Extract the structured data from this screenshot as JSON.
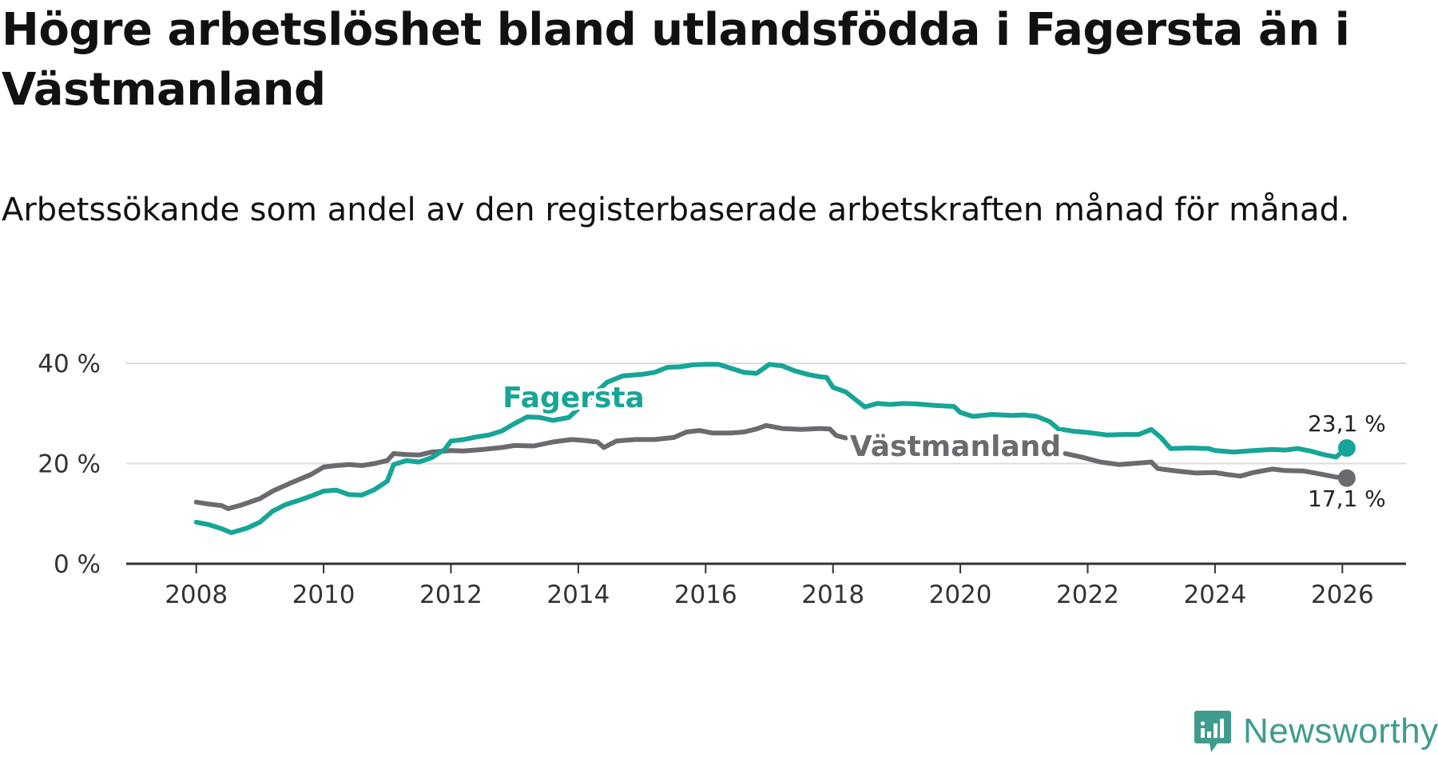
{
  "title": "Högre arbetslöshet bland utlandsfödda i Fagersta än i Västmanland",
  "subtitle": "Arbetssökande som andel av den registerbaserade arbetskraften månad för månad.",
  "brand": {
    "name": "Newsworthy",
    "icon": "newsworthy-logo-icon"
  },
  "colors": {
    "fagersta": "#16a596",
    "vastmanland": "#6b6a6f",
    "grid": "#dddddd",
    "axis": "#333333"
  },
  "chart_data": {
    "type": "line",
    "x_ticks": [
      "2008",
      "2010",
      "2012",
      "2014",
      "2016",
      "2018",
      "2020",
      "2022",
      "2024",
      "2026"
    ],
    "y_ticks": [
      "0 %",
      "20 %",
      "40 %"
    ],
    "ylim": [
      0,
      40
    ],
    "xlim": [
      2006.9,
      2027.0
    ],
    "grid": true,
    "series": [
      {
        "name": "Fagersta",
        "key": "fagersta",
        "end_label": "23,1 %",
        "points": [
          [
            2008.0,
            8.3
          ],
          [
            2008.2,
            7.8
          ],
          [
            2008.4,
            7.0
          ],
          [
            2008.55,
            6.2
          ],
          [
            2008.8,
            7.1
          ],
          [
            2009.0,
            8.3
          ],
          [
            2009.2,
            10.5
          ],
          [
            2009.4,
            11.8
          ],
          [
            2009.6,
            12.6
          ],
          [
            2009.8,
            13.5
          ],
          [
            2010.0,
            14.5
          ],
          [
            2010.2,
            14.7
          ],
          [
            2010.4,
            13.8
          ],
          [
            2010.6,
            13.7
          ],
          [
            2010.8,
            14.8
          ],
          [
            2011.0,
            16.5
          ],
          [
            2011.1,
            19.8
          ],
          [
            2011.3,
            20.6
          ],
          [
            2011.5,
            20.3
          ],
          [
            2011.7,
            21.2
          ],
          [
            2011.9,
            22.8
          ],
          [
            2012.0,
            24.5
          ],
          [
            2012.2,
            24.8
          ],
          [
            2012.4,
            25.3
          ],
          [
            2012.6,
            25.7
          ],
          [
            2012.8,
            26.5
          ],
          [
            2013.0,
            28.0
          ],
          [
            2013.2,
            29.3
          ],
          [
            2013.4,
            29.2
          ],
          [
            2013.6,
            28.6
          ],
          [
            2013.85,
            29.2
          ],
          [
            2014.45,
            36.2
          ],
          [
            2014.7,
            37.5
          ],
          [
            2015.0,
            37.8
          ],
          [
            2015.2,
            38.2
          ],
          [
            2015.4,
            39.2
          ],
          [
            2015.6,
            39.3
          ],
          [
            2015.8,
            39.7
          ],
          [
            2016.0,
            39.8
          ],
          [
            2016.2,
            39.8
          ],
          [
            2016.4,
            39.0
          ],
          [
            2016.6,
            38.2
          ],
          [
            2016.8,
            38.0
          ],
          [
            2017.0,
            39.8
          ],
          [
            2017.2,
            39.5
          ],
          [
            2017.4,
            38.5
          ],
          [
            2017.6,
            37.8
          ],
          [
            2017.8,
            37.3
          ],
          [
            2017.9,
            37.2
          ],
          [
            2018.0,
            35.2
          ],
          [
            2018.2,
            34.3
          ],
          [
            2018.35,
            32.8
          ],
          [
            2018.5,
            31.3
          ],
          [
            2018.7,
            32.0
          ],
          [
            2018.9,
            31.8
          ],
          [
            2019.1,
            32.0
          ],
          [
            2019.3,
            31.9
          ],
          [
            2019.6,
            31.6
          ],
          [
            2019.9,
            31.4
          ],
          [
            2020.0,
            30.2
          ],
          [
            2020.2,
            29.4
          ],
          [
            2020.5,
            29.8
          ],
          [
            2020.8,
            29.6
          ],
          [
            2021.0,
            29.7
          ],
          [
            2021.2,
            29.4
          ],
          [
            2021.4,
            28.4
          ],
          [
            2021.55,
            26.8
          ]
        ],
        "points_b": [
          [
            2021.6,
            26.8
          ],
          [
            2021.8,
            26.4
          ],
          [
            2022.0,
            26.2
          ],
          [
            2022.3,
            25.7
          ],
          [
            2022.6,
            25.8
          ],
          [
            2022.8,
            25.8
          ],
          [
            2023.0,
            26.8
          ],
          [
            2023.15,
            25.2
          ],
          [
            2023.3,
            23.0
          ],
          [
            2023.6,
            23.1
          ],
          [
            2023.9,
            23.0
          ],
          [
            2024.0,
            22.6
          ],
          [
            2024.3,
            22.3
          ],
          [
            2024.6,
            22.6
          ],
          [
            2024.9,
            22.8
          ],
          [
            2025.1,
            22.7
          ],
          [
            2025.3,
            23.0
          ],
          [
            2025.5,
            22.5
          ],
          [
            2025.7,
            21.8
          ],
          [
            2025.9,
            21.3
          ],
          [
            2026.07,
            23.1
          ]
        ]
      },
      {
        "name": "Västmanland",
        "key": "vastmanland",
        "end_label": "17,1 %",
        "points": [
          [
            2008.0,
            12.3
          ],
          [
            2008.2,
            11.9
          ],
          [
            2008.4,
            11.6
          ],
          [
            2008.5,
            11.0
          ],
          [
            2008.7,
            11.7
          ],
          [
            2009.0,
            13.0
          ],
          [
            2009.2,
            14.5
          ],
          [
            2009.5,
            16.2
          ],
          [
            2009.8,
            17.8
          ],
          [
            2010.0,
            19.3
          ],
          [
            2010.2,
            19.6
          ],
          [
            2010.4,
            19.8
          ],
          [
            2010.6,
            19.6
          ],
          [
            2010.8,
            20.0
          ],
          [
            2011.0,
            20.6
          ],
          [
            2011.1,
            22.0
          ],
          [
            2011.3,
            21.8
          ],
          [
            2011.5,
            21.7
          ],
          [
            2011.7,
            22.3
          ],
          [
            2012.0,
            22.6
          ],
          [
            2012.2,
            22.5
          ],
          [
            2012.5,
            22.8
          ],
          [
            2012.8,
            23.2
          ],
          [
            2013.0,
            23.6
          ],
          [
            2013.3,
            23.5
          ],
          [
            2013.6,
            24.3
          ],
          [
            2013.9,
            24.8
          ],
          [
            2014.1,
            24.6
          ],
          [
            2014.3,
            24.3
          ],
          [
            2014.4,
            23.2
          ],
          [
            2014.6,
            24.5
          ],
          [
            2014.9,
            24.8
          ],
          [
            2015.2,
            24.8
          ],
          [
            2015.5,
            25.2
          ],
          [
            2015.7,
            26.3
          ],
          [
            2015.9,
            26.6
          ],
          [
            2016.1,
            26.1
          ],
          [
            2016.4,
            26.1
          ],
          [
            2016.6,
            26.3
          ],
          [
            2016.8,
            26.9
          ],
          [
            2016.95,
            27.6
          ],
          [
            2017.2,
            27.0
          ],
          [
            2017.5,
            26.8
          ],
          [
            2017.8,
            27.0
          ],
          [
            2017.95,
            26.9
          ],
          [
            2018.05,
            25.6
          ],
          [
            2018.2,
            25.1
          ]
        ],
        "points_b": [
          [
            2021.65,
            22.0
          ],
          [
            2021.9,
            21.3
          ],
          [
            2022.2,
            20.3
          ],
          [
            2022.5,
            19.8
          ],
          [
            2022.8,
            20.1
          ],
          [
            2023.0,
            20.3
          ],
          [
            2023.1,
            19.0
          ],
          [
            2023.4,
            18.5
          ],
          [
            2023.7,
            18.1
          ],
          [
            2024.0,
            18.2
          ],
          [
            2024.2,
            17.8
          ],
          [
            2024.4,
            17.5
          ],
          [
            2024.6,
            18.2
          ],
          [
            2024.9,
            18.9
          ],
          [
            2025.1,
            18.6
          ],
          [
            2025.4,
            18.5
          ],
          [
            2025.7,
            17.8
          ],
          [
            2025.9,
            17.3
          ],
          [
            2026.07,
            17.1
          ]
        ]
      }
    ]
  }
}
